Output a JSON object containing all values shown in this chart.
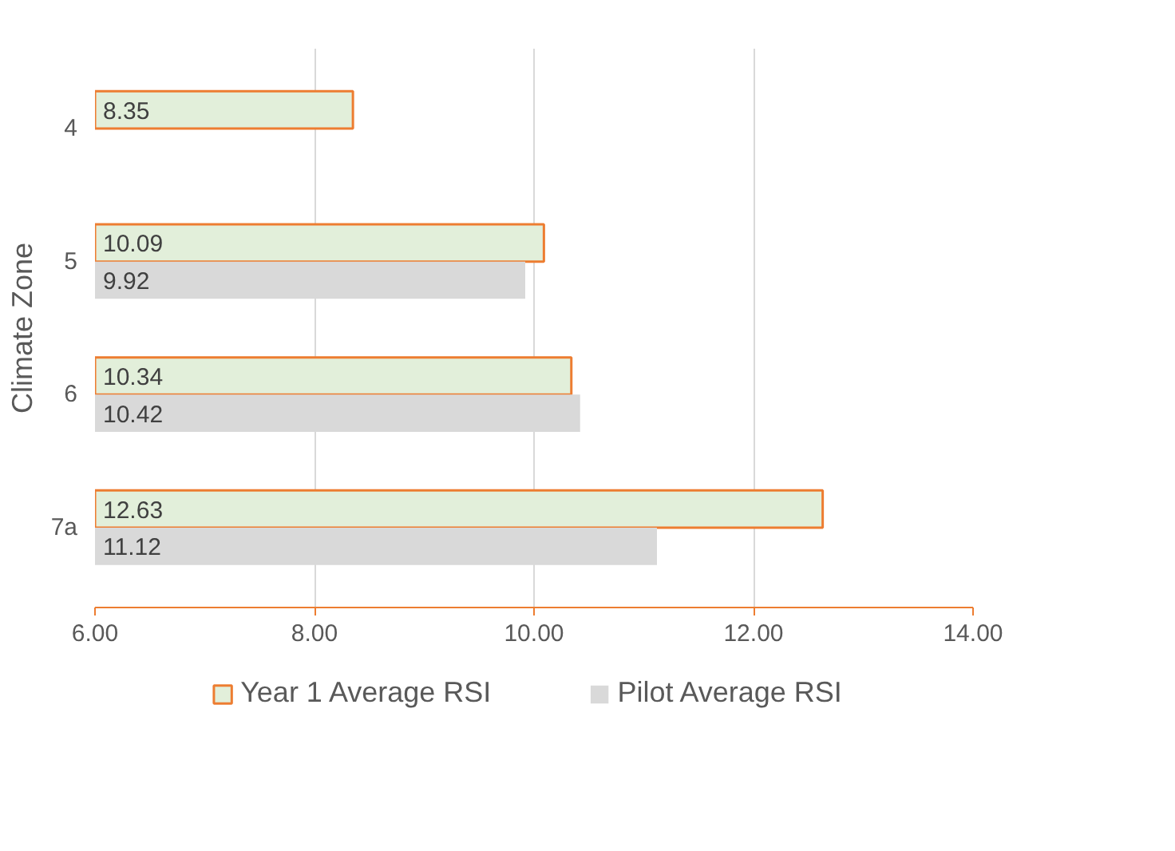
{
  "chart_data": {
    "type": "bar",
    "orientation": "horizontal",
    "ylabel": "Climate Zone",
    "categories": [
      "4",
      "5",
      "6",
      "7a"
    ],
    "series": [
      {
        "name": "Year 1 Average RSI",
        "color": "#e2efda",
        "values": [
          8.35,
          10.09,
          10.34,
          12.63
        ]
      },
      {
        "name": "Pilot Average RSI",
        "color": "#d9d9d9",
        "values": [
          null,
          9.92,
          10.42,
          11.12
        ]
      }
    ],
    "xlim": [
      6,
      14
    ],
    "xticks": [
      {
        "value": 6,
        "label": "6.00"
      },
      {
        "value": 8,
        "label": "8.00"
      },
      {
        "value": 10,
        "label": "10.00"
      },
      {
        "value": 12,
        "label": "12.00"
      },
      {
        "value": 14,
        "label": "14.00"
      }
    ],
    "grid": "x",
    "legend": "bottom",
    "data_labels": true
  }
}
